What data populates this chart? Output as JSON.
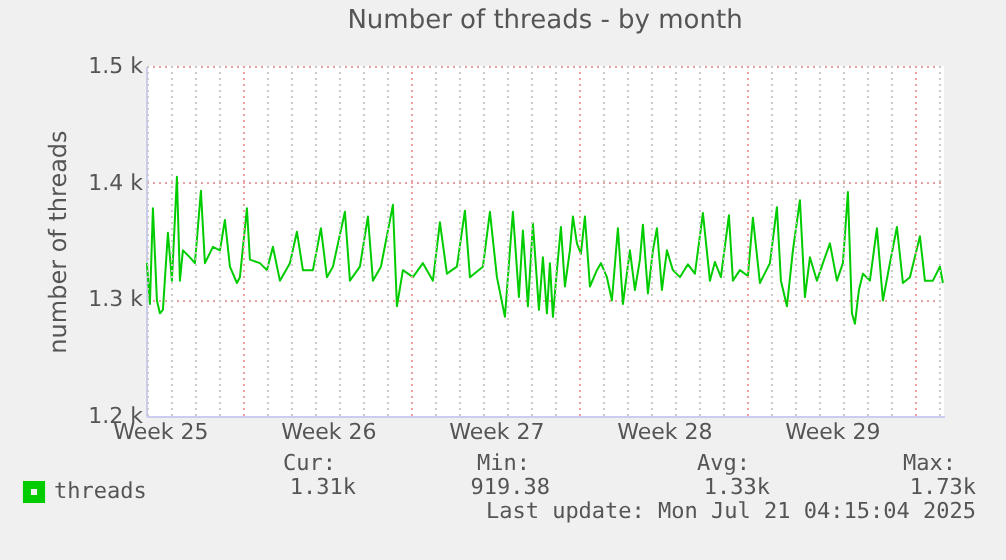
{
  "chart_data": {
    "type": "line",
    "title": "Number of threads - by month",
    "ylabel": "number of threads",
    "x": [
      "2025-06-17T23:00",
      "2025-06-18T02:00",
      "2025-06-18T05:00",
      "2025-06-18T09:00",
      "2025-06-18T12:00",
      "2025-06-18T15:00",
      "2025-06-18T20:00",
      "2025-06-19T00:00",
      "2025-06-19T05:00",
      "2025-06-19T08:00",
      "2025-06-19T11:00",
      "2025-06-19T18:00",
      "2025-06-19T23:00",
      "2025-06-20T05:00",
      "2025-06-20T09:00",
      "2025-06-20T17:00",
      "2025-06-21T00:00",
      "2025-06-21T05:00",
      "2025-06-21T10:00",
      "2025-06-21T17:00",
      "2025-06-21T20:00",
      "2025-06-22T03:00",
      "2025-06-22T06:00",
      "2025-06-22T16:00",
      "2025-06-22T23:00",
      "2025-06-23T05:00",
      "2025-06-23T12:00",
      "2025-06-23T22:00",
      "2025-06-24T05:00",
      "2025-06-24T11:00",
      "2025-06-24T21:00",
      "2025-06-25T05:00",
      "2025-06-25T11:00",
      "2025-06-25T17:00",
      "2025-06-26T05:00",
      "2025-06-26T10:00",
      "2025-06-26T20:00",
      "2025-06-27T04:00",
      "2025-06-27T09:00",
      "2025-06-27T17:00",
      "2025-06-28T05:00",
      "2025-06-28T09:00",
      "2025-06-28T15:00",
      "2025-06-29T01:00",
      "2025-06-29T11:00",
      "2025-06-29T21:00",
      "2025-06-30T04:00",
      "2025-06-30T11:00",
      "2025-06-30T21:00",
      "2025-07-01T05:00",
      "2025-07-01T10:00",
      "2025-07-01T23:00",
      "2025-07-02T06:00",
      "2025-07-02T13:00",
      "2025-07-02T21:00",
      "2025-07-03T02:00",
      "2025-07-03T05:00",
      "2025-07-03T11:00",
      "2025-07-03T15:00",
      "2025-07-03T20:00",
      "2025-07-04T01:00",
      "2025-07-04T07:00",
      "2025-07-04T11:00",
      "2025-07-04T15:00",
      "2025-07-04T18:00",
      "2025-07-04T21:00",
      "2025-07-05T01:00",
      "2025-07-05T05:00",
      "2025-07-05T09:00",
      "2025-07-05T14:00",
      "2025-07-05T17:00",
      "2025-07-05T21:00",
      "2025-07-06T01:00",
      "2025-07-06T05:00",
      "2025-07-06T10:00",
      "2025-07-06T17:00",
      "2025-07-06T21:00",
      "2025-07-07T03:00",
      "2025-07-07T08:00",
      "2025-07-07T14:00",
      "2025-07-07T19:00",
      "2025-07-08T02:00",
      "2025-07-08T07:00",
      "2025-07-08T12:00",
      "2025-07-08T15:00",
      "2025-07-08T20:00",
      "2025-07-09T01:00",
      "2025-07-09T05:00",
      "2025-07-09T10:00",
      "2025-07-09T15:00",
      "2025-07-09T21:00",
      "2025-07-10T04:00",
      "2025-07-10T12:00",
      "2025-07-10T19:00",
      "2025-07-11T03:00",
      "2025-07-11T10:00",
      "2025-07-11T15:00",
      "2025-07-11T21:00",
      "2025-07-12T05:00",
      "2025-07-12T09:00",
      "2025-07-12T16:00",
      "2025-07-13T00:00",
      "2025-07-13T05:00",
      "2025-07-13T12:00",
      "2025-07-13T22:00",
      "2025-07-14T05:00",
      "2025-07-14T09:00",
      "2025-07-14T15:00",
      "2025-07-14T21:00",
      "2025-07-15T04:00",
      "2025-07-15T09:00",
      "2025-07-15T14:00",
      "2025-07-15T21:00",
      "2025-07-16T03:00",
      "2025-07-16T10:00",
      "2025-07-16T17:00",
      "2025-07-16T23:00",
      "2025-07-17T04:00",
      "2025-07-17T08:00",
      "2025-07-17T11:00",
      "2025-07-17T15:00",
      "2025-07-17T19:00",
      "2025-07-18T02:00",
      "2025-07-18T09:00",
      "2025-07-18T15:00",
      "2025-07-18T22:00",
      "2025-07-19T05:00",
      "2025-07-19T11:00",
      "2025-07-19T18:00",
      "2025-07-20T04:00",
      "2025-07-20T09:00",
      "2025-07-20T17:00",
      "2025-07-21T00:00",
      "2025-07-21T03:00"
    ],
    "series": [
      {
        "name": "threads",
        "color": "#00cc00",
        "values": [
          1331,
          1296,
          1378,
          1299,
          1288,
          1291,
          1357,
          1316,
          1405,
          1316,
          1342,
          1336,
          1331,
          1393,
          1331,
          1345,
          1342,
          1368,
          1328,
          1314,
          1319,
          1378,
          1334,
          1331,
          1325,
          1345,
          1316,
          1331,
          1358,
          1325,
          1325,
          1361,
          1319,
          1328,
          1375,
          1316,
          1328,
          1371,
          1316,
          1328,
          1381,
          1294,
          1325,
          1319,
          1331,
          1316,
          1366,
          1322,
          1328,
          1376,
          1319,
          1328,
          1375,
          1319,
          1285,
          1342,
          1375,
          1302,
          1359,
          1294,
          1365,
          1291,
          1336,
          1288,
          1331,
          1285,
          1325,
          1362,
          1311,
          1342,
          1371,
          1348,
          1339,
          1371,
          1311,
          1325,
          1331,
          1319,
          1299,
          1361,
          1296,
          1342,
          1308,
          1334,
          1364,
          1305,
          1342,
          1361,
          1308,
          1342,
          1325,
          1319,
          1330,
          1322,
          1374,
          1316,
          1332,
          1319,
          1372,
          1316,
          1325,
          1320,
          1370,
          1314,
          1331,
          1379,
          1316,
          1294,
          1342,
          1385,
          1302,
          1336,
          1316,
          1331,
          1348,
          1316,
          1331,
          1392,
          1288,
          1279,
          1308,
          1322,
          1316,
          1361,
          1299,
          1331,
          1362,
          1314,
          1319,
          1354,
          1316,
          1316,
          1328,
          1314
        ]
      }
    ],
    "xlim": [
      "2025-06-17T22:05",
      "2025-07-21T04:05"
    ],
    "xticks": [
      {
        "value": "2025-06-18T12:00",
        "label": "Week 25"
      },
      {
        "value": "2025-06-25T12:00",
        "label": "Week 26"
      },
      {
        "value": "2025-07-02T12:00",
        "label": "Week 27"
      },
      {
        "value": "2025-07-09T12:00",
        "label": "Week 28"
      },
      {
        "value": "2025-07-16T12:00",
        "label": "Week 29"
      },
      {
        "value": "2025-06-18",
        "label": null
      },
      {
        "value": "2025-06-19",
        "label": null
      },
      {
        "value": "2025-06-20",
        "label": null
      },
      {
        "value": "2025-06-21",
        "label": null
      },
      {
        "value": "2025-06-23",
        "label": null
      },
      {
        "value": "2025-06-24",
        "label": null
      },
      {
        "value": "2025-06-25",
        "label": null
      },
      {
        "value": "2025-06-26",
        "label": null
      },
      {
        "value": "2025-06-27",
        "label": null
      },
      {
        "value": "2025-06-28",
        "label": null
      },
      {
        "value": "2025-06-30",
        "label": null
      },
      {
        "value": "2025-07-01",
        "label": null
      },
      {
        "value": "2025-07-02",
        "label": null
      },
      {
        "value": "2025-07-03",
        "label": null
      },
      {
        "value": "2025-07-04",
        "label": null
      },
      {
        "value": "2025-07-05",
        "label": null
      },
      {
        "value": "2025-07-07",
        "label": null
      },
      {
        "value": "2025-07-08",
        "label": null
      },
      {
        "value": "2025-07-09",
        "label": null
      },
      {
        "value": "2025-07-10",
        "label": null
      },
      {
        "value": "2025-07-11",
        "label": null
      },
      {
        "value": "2025-07-12",
        "label": null
      },
      {
        "value": "2025-07-14",
        "label": null
      },
      {
        "value": "2025-07-15",
        "label": null
      },
      {
        "value": "2025-07-16",
        "label": null
      },
      {
        "value": "2025-07-17",
        "label": null
      },
      {
        "value": "2025-07-18",
        "label": null
      },
      {
        "value": "2025-07-19",
        "label": null
      },
      {
        "value": "2025-07-21",
        "label": null
      }
    ],
    "ylim": [
      1200,
      1500
    ],
    "yticks": [
      {
        "value": 1200,
        "label": "1.2 k"
      },
      {
        "value": 1300,
        "label": "1.3 k"
      },
      {
        "value": 1400,
        "label": "1.4 k"
      },
      {
        "value": 1500,
        "label": "1.5 k"
      }
    ],
    "ref_lines": [
      {
        "axis": "x",
        "value": "2025-06-22",
        "color": "#e8a0a0",
        "line_style": "dotted"
      },
      {
        "axis": "x",
        "value": "2025-06-29",
        "color": "#e8a0a0",
        "line_style": "dotted"
      },
      {
        "axis": "x",
        "value": "2025-07-06",
        "color": "#e8a0a0",
        "line_style": "dotted"
      },
      {
        "axis": "x",
        "value": "2025-07-13",
        "color": "#e8a0a0",
        "line_style": "dotted"
      },
      {
        "axis": "x",
        "value": "2025-07-20",
        "color": "#e8a0a0",
        "line_style": "dotted"
      }
    ],
    "grid": true,
    "legend": "bottom left",
    "marker": "none",
    "line_style": "solid",
    "annotations": [
      "Cur:",
      "1.31k",
      "Min:",
      "919.38",
      "Avg:",
      "1.33k",
      "Max:",
      "1.73k",
      "Last update: Mon Jul 21 04:15:04 2025"
    ]
  }
}
